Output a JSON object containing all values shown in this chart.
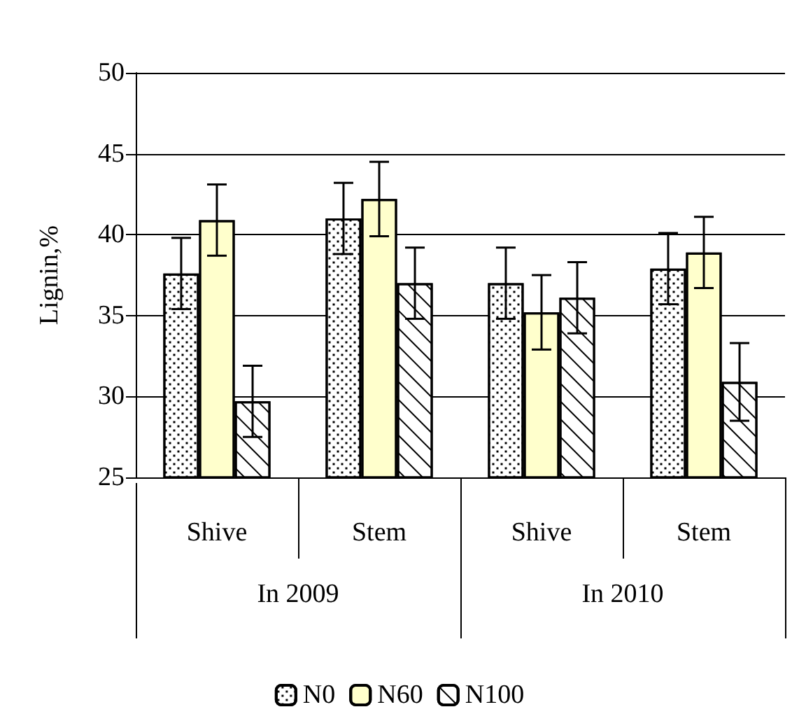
{
  "chart_data": {
    "type": "bar",
    "ylabel": "Lignin,%",
    "categories": [
      "Shive",
      "Stem",
      "Shive",
      "Stem"
    ],
    "annotations": [
      "In 2009",
      "In 2010"
    ],
    "series": [
      {
        "name": "N0",
        "color": "#ffffff",
        "values": [
          37.6,
          41.0,
          37.0,
          37.9
        ],
        "errors": [
          2.2,
          2.2,
          2.2,
          2.2
        ]
      },
      {
        "name": "N60",
        "color": "#ffffcc",
        "values": [
          40.9,
          42.2,
          35.2,
          38.9
        ],
        "errors": [
          2.2,
          2.3,
          2.3,
          2.2
        ]
      },
      {
        "name": "N100",
        "color": "#ffffff",
        "values": [
          29.7,
          37.0,
          36.1,
          30.9
        ],
        "errors": [
          2.2,
          2.2,
          2.2,
          2.4
        ]
      }
    ],
    "ylim": [
      25,
      50
    ],
    "yticks": [
      25,
      30,
      35,
      40,
      45,
      50
    ],
    "grid": "y",
    "legend": "bottom"
  }
}
